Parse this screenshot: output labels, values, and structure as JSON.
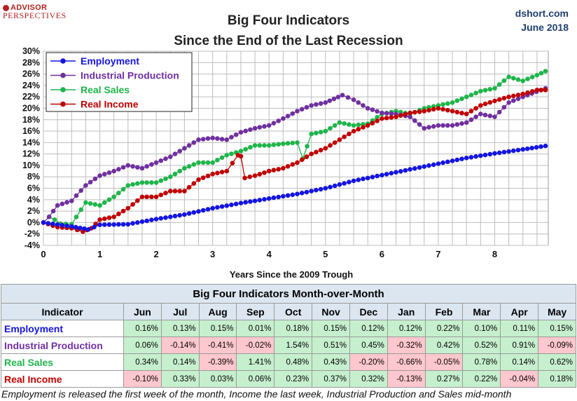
{
  "brand": {
    "logo_top": "ADVISOR",
    "logo_bottom": "PERSPECTIVES"
  },
  "title": {
    "line1": "Big Four Indicators",
    "line2": "Since the End of the Last Recession"
  },
  "source": {
    "line1": "dshort.com",
    "line2": "June 2018"
  },
  "colors": {
    "employment": "#1515e0",
    "industrial": "#7030a0",
    "sales": "#1fb54a",
    "income": "#c00000",
    "positive_cell": "#c6efce",
    "negative_cell": "#ffc7ce"
  },
  "chart_data": {
    "type": "line",
    "title": "Big Four Indicators Since the End of the Last Recession",
    "xlabel": "Years Since the 2009 Trough",
    "ylabel": "",
    "xlim": [
      0,
      8.95
    ],
    "ylim": [
      -4,
      30
    ],
    "x_ticks": [
      0,
      1,
      2,
      3,
      4,
      5,
      6,
      7,
      8
    ],
    "y_ticks": [
      -4,
      -2,
      0,
      2,
      4,
      6,
      8,
      10,
      12,
      14,
      16,
      18,
      20,
      22,
      24,
      26,
      28,
      30
    ],
    "y_tick_labels": [
      "-4%",
      "-2%",
      "0%",
      "2%",
      "4%",
      "6%",
      "8%",
      "10%",
      "12%",
      "14%",
      "16%",
      "18%",
      "20%",
      "22%",
      "24%",
      "26%",
      "28%",
      "30%"
    ],
    "grid": true,
    "legend_position": "top-left",
    "series": [
      {
        "name": "Employment",
        "color": "#1515e0",
        "points": [
          [
            0,
            0
          ],
          [
            0.5,
            -0.7
          ],
          [
            0.8,
            -1.2
          ],
          [
            1,
            -0.4
          ],
          [
            1.5,
            -0.3
          ],
          [
            2,
            0.6
          ],
          [
            2.5,
            1.4
          ],
          [
            3,
            2.5
          ],
          [
            3.5,
            3.4
          ],
          [
            4,
            4.2
          ],
          [
            4.5,
            5.0
          ],
          [
            5,
            6.0
          ],
          [
            5.5,
            7.3
          ],
          [
            6,
            8.3
          ],
          [
            6.5,
            9.3
          ],
          [
            7,
            10.3
          ],
          [
            7.5,
            11.3
          ],
          [
            8,
            12.1
          ],
          [
            8.5,
            12.8
          ],
          [
            8.9,
            13.4
          ]
        ]
      },
      {
        "name": "Industrial Production",
        "color": "#7030a0",
        "points": [
          [
            0,
            0
          ],
          [
            0.1,
            1.0
          ],
          [
            0.25,
            3.0
          ],
          [
            0.5,
            3.8
          ],
          [
            0.75,
            6.5
          ],
          [
            1,
            8.2
          ],
          [
            1.25,
            9.0
          ],
          [
            1.5,
            10.0
          ],
          [
            1.75,
            9.5
          ],
          [
            2,
            10.5
          ],
          [
            2.25,
            11.5
          ],
          [
            2.5,
            13.0
          ],
          [
            2.75,
            14.5
          ],
          [
            3,
            14.8
          ],
          [
            3.25,
            14.5
          ],
          [
            3.5,
            15.8
          ],
          [
            3.75,
            16.5
          ],
          [
            4,
            17.0
          ],
          [
            4.25,
            18.2
          ],
          [
            4.5,
            19.5
          ],
          [
            4.75,
            20.5
          ],
          [
            5,
            21.0
          ],
          [
            5.3,
            22.3
          ],
          [
            5.5,
            21.5
          ],
          [
            5.75,
            20.0
          ],
          [
            6,
            19.2
          ],
          [
            6.25,
            19.0
          ],
          [
            6.5,
            18.5
          ],
          [
            6.75,
            16.5
          ],
          [
            7,
            17.0
          ],
          [
            7.25,
            17.0
          ],
          [
            7.5,
            17.5
          ],
          [
            7.75,
            19.0
          ],
          [
            8,
            18.5
          ],
          [
            8.25,
            21.0
          ],
          [
            8.5,
            22.0
          ],
          [
            8.9,
            23.5
          ]
        ]
      },
      {
        "name": "Real Sales",
        "color": "#1fb54a",
        "points": [
          [
            0,
            0
          ],
          [
            0.1,
            1.0
          ],
          [
            0.2,
            0.5
          ],
          [
            0.3,
            -0.2
          ],
          [
            0.5,
            -0.3
          ],
          [
            0.75,
            3.5
          ],
          [
            1,
            3.0
          ],
          [
            1.25,
            4.5
          ],
          [
            1.5,
            6.5
          ],
          [
            1.75,
            7.0
          ],
          [
            2,
            7.0
          ],
          [
            2.25,
            8.0
          ],
          [
            2.5,
            9.5
          ],
          [
            2.75,
            10.5
          ],
          [
            3,
            10.5
          ],
          [
            3.25,
            11.8
          ],
          [
            3.5,
            12.5
          ],
          [
            3.75,
            13.5
          ],
          [
            4,
            13.5
          ],
          [
            4.25,
            13.8
          ],
          [
            4.5,
            14.0
          ],
          [
            4.6,
            11.2
          ],
          [
            4.75,
            15.5
          ],
          [
            5,
            16.0
          ],
          [
            5.25,
            17.5
          ],
          [
            5.5,
            17.0
          ],
          [
            5.75,
            17.3
          ],
          [
            6,
            19.0
          ],
          [
            6.25,
            19.5
          ],
          [
            6.5,
            19.0
          ],
          [
            6.75,
            20.0
          ],
          [
            7,
            20.5
          ],
          [
            7.25,
            21.0
          ],
          [
            7.5,
            22.0
          ],
          [
            7.75,
            23.0
          ],
          [
            8,
            23.5
          ],
          [
            8.25,
            25.5
          ],
          [
            8.5,
            24.8
          ],
          [
            8.75,
            25.8
          ],
          [
            8.9,
            26.5
          ]
        ]
      },
      {
        "name": "Real Income",
        "color": "#c00000",
        "points": [
          [
            0,
            0
          ],
          [
            0.25,
            -0.8
          ],
          [
            0.5,
            -1.0
          ],
          [
            0.7,
            -1.6
          ],
          [
            0.85,
            -1.0
          ],
          [
            1,
            0.5
          ],
          [
            1.25,
            1.0
          ],
          [
            1.5,
            2.5
          ],
          [
            1.75,
            4.5
          ],
          [
            2,
            4.5
          ],
          [
            2.25,
            5.5
          ],
          [
            2.5,
            5.5
          ],
          [
            2.75,
            7.5
          ],
          [
            3,
            8.5
          ],
          [
            3.25,
            9.0
          ],
          [
            3.45,
            11.8
          ],
          [
            3.5,
            11.6
          ],
          [
            3.57,
            7.8
          ],
          [
            3.75,
            8.2
          ],
          [
            4,
            9.0
          ],
          [
            4.25,
            9.5
          ],
          [
            4.5,
            10.5
          ],
          [
            4.75,
            12.0
          ],
          [
            5,
            13.0
          ],
          [
            5.25,
            14.5
          ],
          [
            5.5,
            16.0
          ],
          [
            5.75,
            17.0
          ],
          [
            6,
            18.2
          ],
          [
            6.25,
            18.5
          ],
          [
            6.5,
            19.2
          ],
          [
            6.75,
            19.5
          ],
          [
            7,
            20.0
          ],
          [
            7.25,
            19.5
          ],
          [
            7.5,
            19.0
          ],
          [
            7.75,
            20.5
          ],
          [
            8,
            21.3
          ],
          [
            8.25,
            22.0
          ],
          [
            8.5,
            22.5
          ],
          [
            8.75,
            23.2
          ],
          [
            8.9,
            23.2
          ]
        ]
      }
    ]
  },
  "table": {
    "title": "Big Four Indicators Month-over-Month",
    "header_label": "Indicator",
    "months": [
      "Jun",
      "Jul",
      "Aug",
      "Sep",
      "Oct",
      "Nov",
      "Dec",
      "Jan",
      "Feb",
      "Mar",
      "Apr",
      "May"
    ],
    "rows": [
      {
        "name": "Employment",
        "color": "#1515e0",
        "values": [
          "0.16%",
          "0.13%",
          "0.15%",
          "0.01%",
          "0.18%",
          "0.15%",
          "0.12%",
          "0.12%",
          "0.22%",
          "0.10%",
          "0.11%",
          "0.15%"
        ]
      },
      {
        "name": "Industrial Production",
        "color": "#7030a0",
        "values": [
          "0.06%",
          "-0.14%",
          "-0.41%",
          "-0.02%",
          "1.54%",
          "0.51%",
          "0.45%",
          "-0.32%",
          "0.42%",
          "0.52%",
          "0.91%",
          "-0.09%"
        ]
      },
      {
        "name": "Real Sales",
        "color": "#1fb54a",
        "values": [
          "0.34%",
          "0.14%",
          "-0.39%",
          "1.41%",
          "0.48%",
          "0.43%",
          "-0.20%",
          "-0.66%",
          "-0.05%",
          "0.78%",
          "0.14%",
          "0.62%"
        ]
      },
      {
        "name": "Real Income",
        "color": "#c00000",
        "values": [
          "-0.10%",
          "0.33%",
          "0.03%",
          "0.06%",
          "0.23%",
          "0.37%",
          "0.32%",
          "-0.13%",
          "0.27%",
          "0.22%",
          "-0.04%",
          "0.18%"
        ]
      }
    ]
  },
  "footnote": "Employment is released the first week of the month, Income the last week, Industrial Production and Sales mid-month"
}
